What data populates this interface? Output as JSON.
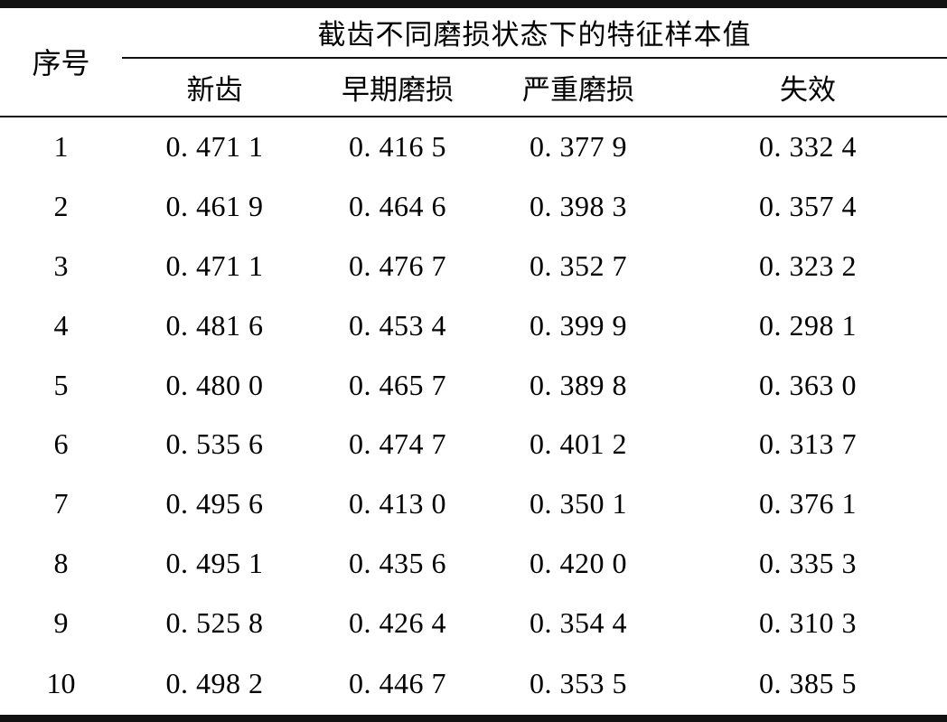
{
  "table": {
    "serial_header": "序号",
    "span_header": "截齿不同磨损状态下的特征样本值",
    "columns": [
      "新齿",
      "早期磨损",
      "严重磨损",
      "失效"
    ],
    "rows": [
      {
        "no": "1",
        "values": [
          "0. 471 1",
          "0. 416 5",
          "0. 377 9",
          "0. 332 4"
        ]
      },
      {
        "no": "2",
        "values": [
          "0. 461 9",
          "0. 464 6",
          "0. 398 3",
          "0. 357 4"
        ]
      },
      {
        "no": "3",
        "values": [
          "0. 471 1",
          "0. 476 7",
          "0. 352 7",
          "0. 323 2"
        ]
      },
      {
        "no": "4",
        "values": [
          "0. 481 6",
          "0. 453 4",
          "0. 399 9",
          "0. 298 1"
        ]
      },
      {
        "no": "5",
        "values": [
          "0. 480 0",
          "0. 465 7",
          "0. 389 8",
          "0. 363 0"
        ]
      },
      {
        "no": "6",
        "values": [
          "0. 535 6",
          "0. 474 7",
          "0. 401 2",
          "0. 313 7"
        ]
      },
      {
        "no": "7",
        "values": [
          "0. 495 6",
          "0. 413 0",
          "0. 350 1",
          "0. 376 1"
        ]
      },
      {
        "no": "8",
        "values": [
          "0. 495 1",
          "0. 435 6",
          "0. 420 0",
          "0. 335 3"
        ]
      },
      {
        "no": "9",
        "values": [
          "0. 525 8",
          "0. 426 4",
          "0. 354 4",
          "0. 310 3"
        ]
      },
      {
        "no": "10",
        "values": [
          "0. 498 2",
          "0. 446 7",
          "0. 353 5",
          "0. 385 5"
        ]
      }
    ]
  },
  "colors": {
    "text": "#000000",
    "background": "#ffffff",
    "rule": "#121212"
  }
}
